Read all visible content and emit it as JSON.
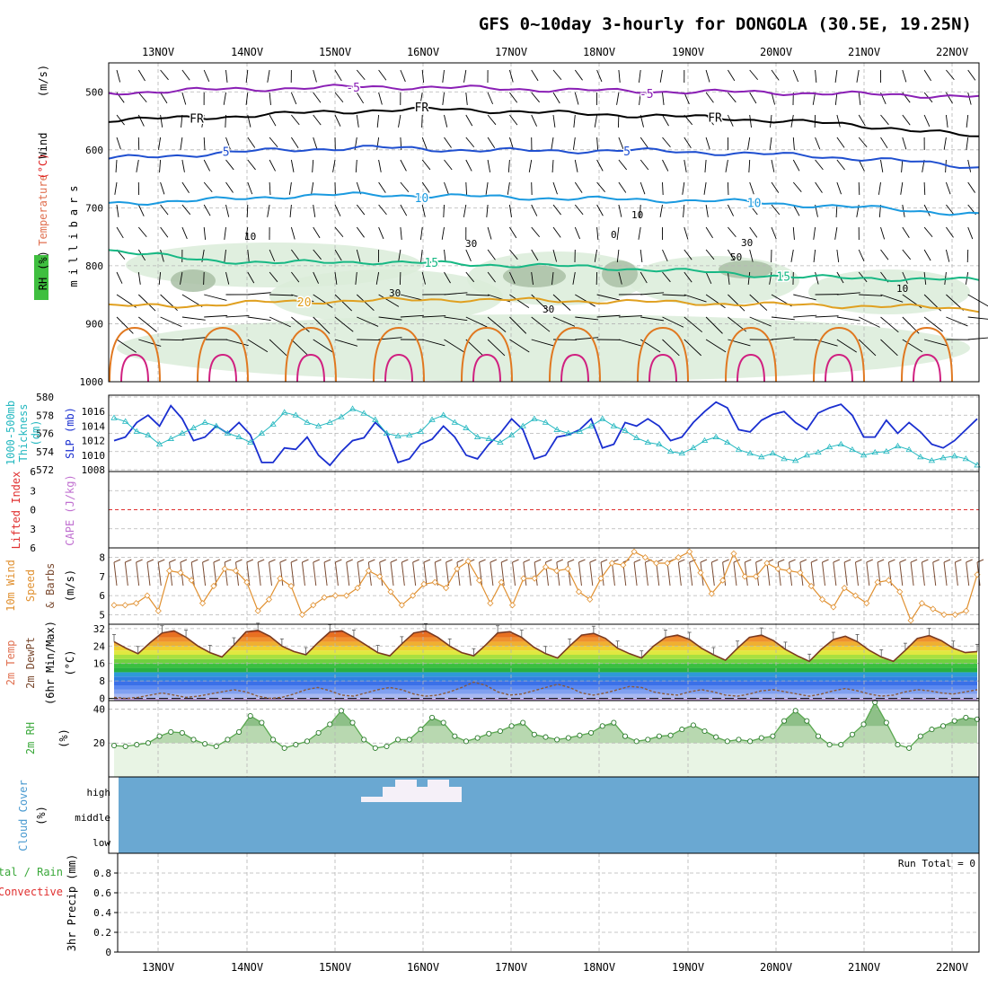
{
  "title": "GFS 0~10day 3-hourly for DONGOLA (30.5E, 19.25N)",
  "colors": {
    "temp_minus5": "#8a1fb5",
    "temp_fr": "#000000",
    "temp_5": "#1f4fd0",
    "temp_10": "#1a9ae0",
    "temp_15": "#17b884",
    "temp_20": "#e0a020",
    "temp_25": "#e07820",
    "temp_30": "#d02080",
    "rh_fill": "#dbecd9",
    "rh_dark": "#a9bfa6",
    "wind_barb": "#000000",
    "slp": "#1a2fd0",
    "thickness": "#25b8c0",
    "lifted_zero": "#e03030",
    "wind10": "#e09030",
    "barb10": "#7a4a30",
    "rh2m": "#5aa850",
    "cloud": "#6aa8d2",
    "cloud_white": "#f5f0f8"
  },
  "chart_data": [
    {
      "panel": "upper-air",
      "type": "area",
      "x": [
        "13NOV",
        "14NOV",
        "15NOV",
        "16NOV",
        "17NOV",
        "18NOV",
        "19NOV",
        "20NOV",
        "21NOV",
        "22NOV"
      ],
      "ylabel_parts": [
        "Wind",
        "(m/s)",
        "Temperature",
        "(°C)",
        "RH",
        "(%)",
        "millibars"
      ],
      "ylabel_full": "RH (%) Temperature (°C) Wind (m/s) (millibars)",
      "y_ticks": [
        500,
        600,
        700,
        800,
        900,
        1000
      ],
      "ylim": [
        450,
        1000
      ],
      "isotherms": [
        {
          "label": "-5",
          "levels_mb": [
            502,
            497,
            494,
            491,
            493,
            496,
            499,
            500,
            502,
            505,
            508
          ]
        },
        {
          "label": "FR",
          "levels_mb": [
            548,
            545,
            538,
            532,
            530,
            536,
            540,
            545,
            552,
            562,
            578
          ]
        },
        {
          "label": "5",
          "levels_mb": [
            615,
            608,
            600,
            596,
            600,
            602,
            601,
            605,
            610,
            618,
            630
          ]
        },
        {
          "label": "10",
          "levels_mb": [
            692,
            688,
            680,
            677,
            680,
            683,
            686,
            688,
            695,
            702,
            712
          ]
        },
        {
          "label": "15",
          "levels_mb": [
            772,
            790,
            795,
            793,
            797,
            800,
            805,
            812,
            820,
            822,
            825
          ]
        },
        {
          "label": "20",
          "levels_mb": [
            870,
            868,
            862,
            860,
            858,
            860,
            862,
            865,
            868,
            870,
            875
          ]
        }
      ],
      "contour_labels": [
        "-5",
        "FR",
        "5",
        "10",
        "15",
        "20",
        "0",
        "10",
        "30",
        "50",
        "30",
        "10"
      ]
    },
    {
      "panel": "slp-thickness",
      "type": "line",
      "ylabel_left": "1000-500mb Thickness (dm)",
      "ylabel_left_parts": [
        "1000-500mb",
        "Thickness",
        "(dm)"
      ],
      "ylabel_right": "SLP (mb)",
      "left_ticks": [
        572,
        574,
        576,
        578,
        580
      ],
      "right_ticks": [
        1008,
        1010,
        1012,
        1014,
        1016
      ],
      "left_lim": [
        572,
        580
      ],
      "right_lim": [
        1008,
        1018
      ],
      "series": [
        {
          "name": "SLP (mb)",
          "axis": "right",
          "values": [
            1012.0,
            1012.5,
            1014.5,
            1015.5,
            1014.0,
            1016.8,
            1015.0,
            1012.0,
            1012.5,
            1014.0,
            1013.0,
            1014.5,
            1012.8,
            1009.0,
            1009.0,
            1011.0,
            1010.8,
            1012.5,
            1010.0,
            1008.6,
            1010.5,
            1012.0,
            1012.4,
            1014.5,
            1013.0,
            1009.0,
            1009.5,
            1011.5,
            1012.2,
            1014.0,
            1012.5,
            1010.0,
            1009.5,
            1011.5,
            1013.0,
            1015.0,
            1013.5,
            1009.5,
            1010.0,
            1012.5,
            1012.8,
            1013.5,
            1015.0,
            1011.0,
            1011.5,
            1014.5,
            1014.0,
            1015.0,
            1014.0,
            1012.0,
            1012.5,
            1014.5,
            1016.0,
            1017.3,
            1016.5,
            1013.5,
            1013.2,
            1014.8,
            1015.6,
            1016.0,
            1014.5,
            1013.5,
            1015.8,
            1016.5,
            1017.0,
            1015.5,
            1012.5,
            1012.5,
            1014.8,
            1013.0,
            1014.5,
            1013.2,
            1011.5,
            1011.0,
            1012.0,
            1013.5,
            1015.0
          ]
        },
        {
          "name": "1000-500mb Thickness (dm)",
          "axis": "left",
          "values": [
            577.7,
            577.3,
            576.2,
            575.8,
            574.8,
            575.4,
            576.0,
            576.6,
            577.2,
            576.8,
            576.0,
            575.6,
            575.0,
            576.0,
            577.0,
            578.3,
            578.0,
            577.2,
            576.8,
            577.2,
            577.8,
            578.7,
            578.2,
            577.5,
            576.0,
            575.7,
            575.8,
            576.2,
            577.5,
            578.0,
            577.2,
            576.6,
            575.6,
            575.4,
            575.0,
            575.8,
            576.8,
            577.6,
            577.2,
            576.4,
            576.0,
            576.2,
            576.8,
            577.6,
            576.8,
            576.3,
            575.5,
            575.0,
            574.8,
            574.0,
            573.8,
            574.4,
            575.2,
            575.6,
            575.0,
            574.2,
            573.8,
            573.4,
            573.8,
            573.2,
            573.0,
            573.6,
            573.9,
            574.5,
            574.8,
            574.2,
            573.6,
            573.9,
            574.0,
            574.6,
            574.2,
            573.4,
            573.0,
            573.3,
            573.5,
            573.2,
            572.5
          ]
        }
      ]
    },
    {
      "panel": "instability",
      "type": "line",
      "ylabel_left": "Lifted Index",
      "ylabel_right": "CAPE (J/kg)",
      "left_ticks": [
        -6,
        -3,
        0,
        3,
        6
      ],
      "left_tick_labels": [
        "6",
        "3",
        "0",
        "3",
        "6"
      ],
      "left_lim": [
        -6,
        6
      ],
      "series": [
        {
          "name": "CAPE (J/kg)",
          "axis": "right",
          "values": [
            0
          ]
        }
      ]
    },
    {
      "panel": "10m-wind",
      "type": "line",
      "ylabel_left": "10m Wind Speed & Barbs",
      "ylabel_parts": [
        "10m",
        "Wind",
        "Speed",
        "&",
        "Barbs",
        "(m/s)"
      ],
      "y_ticks": [
        5,
        6,
        7,
        8
      ],
      "ylim": [
        4.5,
        8.5
      ],
      "series": [
        {
          "name": "10m Wind Speed (m/s)",
          "values": [
            5.5,
            5.5,
            5.6,
            6.0,
            5.2,
            7.3,
            7.2,
            6.8,
            5.6,
            6.5,
            7.4,
            7.3,
            6.7,
            5.2,
            5.8,
            6.9,
            6.5,
            5.0,
            5.5,
            5.9,
            6.0,
            6.0,
            6.4,
            7.3,
            7.0,
            6.2,
            5.5,
            6.0,
            6.6,
            6.7,
            6.4,
            7.4,
            7.8,
            6.8,
            5.6,
            6.7,
            5.5,
            6.9,
            6.9,
            7.5,
            7.3,
            7.4,
            6.2,
            5.8,
            6.9,
            7.7,
            7.6,
            8.3,
            8.0,
            7.7,
            7.7,
            8.0,
            8.3,
            7.2,
            6.1,
            6.8,
            8.2,
            7.0,
            7.0,
            7.7,
            7.4,
            7.3,
            7.2,
            6.5,
            5.8,
            5.4,
            6.4,
            6.0,
            5.6,
            6.7,
            6.8,
            6.2,
            4.7,
            5.6,
            5.3,
            5.0,
            5.0,
            5.2,
            7.1
          ]
        }
      ]
    },
    {
      "panel": "2m-temperature",
      "type": "area",
      "ylabel_parts": [
        "2m Temp",
        "2m DewPt",
        "(6hr Min/Max)",
        "(°C)"
      ],
      "y_ticks": [
        0,
        8,
        16,
        24,
        32
      ],
      "ylim": [
        -1,
        34
      ],
      "series": [
        {
          "name": "2m Temp",
          "values": [
            26.0,
            23.0,
            20.5,
            25.5,
            30.0,
            31.0,
            28.0,
            24.0,
            21.0,
            19.0,
            24.5,
            30.5,
            31.2,
            28.5,
            24.0,
            21.5,
            20.0,
            25.5,
            30.5,
            31.0,
            28.0,
            24.5,
            21.0,
            19.5,
            25.0,
            30.0,
            31.0,
            28.0,
            24.0,
            21.0,
            19.5,
            24.5,
            30.0,
            30.6,
            28.0,
            23.5,
            20.5,
            18.5,
            24.0,
            29.0,
            29.8,
            27.5,
            23.0,
            20.5,
            18.5,
            24.0,
            28.0,
            29.0,
            27.0,
            23.0,
            20.0,
            17.5,
            23.0,
            28.0,
            29.0,
            26.5,
            22.5,
            19.5,
            17.0,
            22.5,
            27.0,
            28.5,
            26.0,
            22.0,
            19.0,
            17.0,
            22.0,
            27.5,
            28.8,
            26.5,
            23.0,
            21.0,
            21.5
          ]
        },
        {
          "name": "2m DewPt",
          "values": [
            0.5,
            0.0,
            0.5,
            1.5,
            2.5,
            1.5,
            0.5,
            1.0,
            2.0,
            3.0,
            4.0,
            3.0,
            1.0,
            0.0,
            0.5,
            2.0,
            4.0,
            5.0,
            3.5,
            1.5,
            1.0,
            2.5,
            4.0,
            5.0,
            4.0,
            2.0,
            1.0,
            1.5,
            3.0,
            5.0,
            7.5,
            6.0,
            3.0,
            1.5,
            2.0,
            3.5,
            5.0,
            6.5,
            5.0,
            2.5,
            1.5,
            2.5,
            4.0,
            5.5,
            5.0,
            3.0,
            2.0,
            1.5,
            3.0,
            4.0,
            3.0,
            1.5,
            1.0,
            2.0,
            3.5,
            4.0,
            3.0,
            2.0,
            1.0,
            2.0,
            3.5,
            4.5,
            3.5,
            2.0,
            1.0,
            1.5,
            3.0,
            4.0,
            3.5,
            2.5,
            2.0,
            3.0,
            4.0
          ]
        }
      ]
    },
    {
      "panel": "2m-rh",
      "type": "area",
      "ylabel_parts": [
        "2m RH",
        "(%)"
      ],
      "y_ticks": [
        20,
        40
      ],
      "ylim": [
        0,
        45
      ],
      "series": [
        {
          "name": "2m RH (%)",
          "values": [
            18.5,
            18.0,
            19.0,
            20.0,
            24.0,
            26.5,
            26.0,
            22.0,
            19.5,
            18.0,
            22.0,
            26.5,
            36.0,
            32.0,
            22.0,
            17.0,
            19.0,
            21.0,
            26.0,
            31.0,
            39.0,
            32.0,
            22.0,
            17.0,
            18.0,
            22.0,
            22.0,
            28.0,
            35.0,
            32.0,
            24.0,
            21.0,
            23.0,
            25.5,
            27.0,
            30.0,
            32.0,
            25.0,
            23.5,
            22.0,
            23.0,
            24.5,
            26.0,
            30.0,
            32.0,
            24.0,
            21.0,
            22.0,
            24.0,
            24.5,
            28.0,
            30.5,
            27.0,
            23.5,
            21.0,
            22.0,
            21.0,
            23.0,
            24.0,
            33.0,
            39.0,
            33.0,
            24.0,
            19.0,
            19.0,
            25.0,
            31.0,
            44.0,
            32.0,
            19.0,
            17.0,
            24.0,
            28.0,
            30.0,
            33.0,
            35.0,
            34.0
          ]
        }
      ]
    },
    {
      "panel": "cloud-cover",
      "type": "heatmap",
      "ylabel_parts": [
        "Cloud Cover",
        "(%)"
      ],
      "levels": [
        "high",
        "middle",
        "low"
      ],
      "note": "high cloud present near 15NOV–16NOV"
    },
    {
      "panel": "precip",
      "type": "bar",
      "ylabel_parts": [
        "3hr Precip (mm)",
        "Total / Rain",
        "Convective"
      ],
      "y_ticks": [
        0,
        0.2,
        0.4,
        0.6,
        0.8
      ],
      "ylim": [
        0,
        1.0
      ],
      "run_total": "Run Total = 0",
      "values": []
    }
  ]
}
